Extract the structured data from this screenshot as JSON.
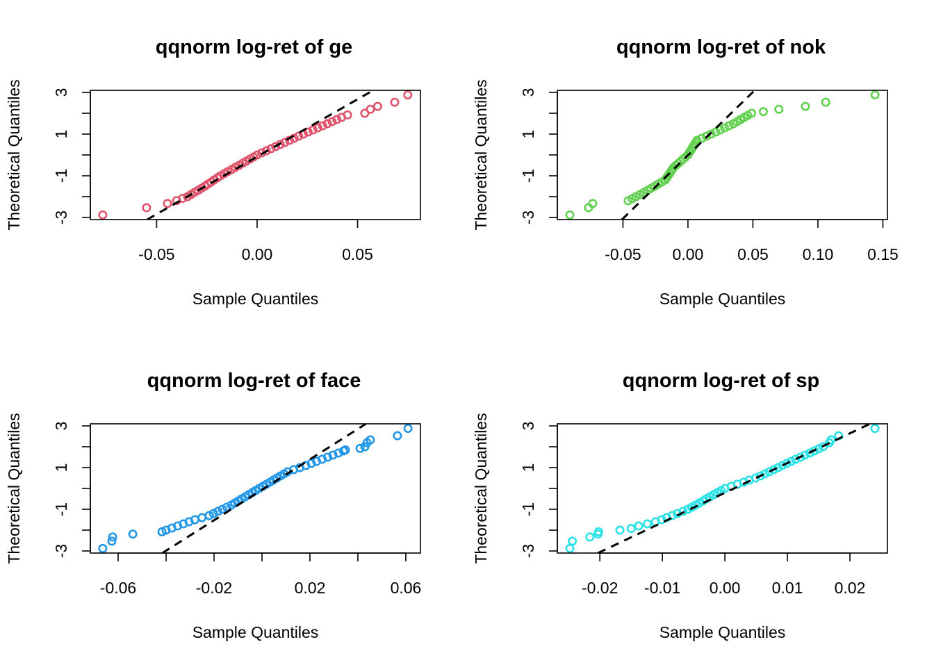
{
  "chart_data": [
    {
      "type": "scatter",
      "title": "qqnorm log-ret of ge",
      "xlabel": "Sample Quantiles",
      "ylabel": "Theoretical Quantiles",
      "color": "#DF536B",
      "xlim": [
        -0.083,
        0.0813
      ],
      "ylim": [
        -3.1,
        3.1
      ],
      "xticks": [
        -0.05,
        0.0,
        0.05
      ],
      "xtick_labels": [
        "-0.05",
        "0.00",
        "0.05"
      ],
      "yticks": [
        -3,
        -2,
        -1,
        0,
        1,
        2,
        3
      ],
      "ytick_labels": [
        "-3",
        "",
        "-1",
        "",
        "1",
        "",
        "3"
      ],
      "qqline": {
        "intercept": -0.085,
        "slope": 55.1
      },
      "points": [
        [
          -0.0768,
          -2.88
        ],
        [
          -0.055,
          -2.53
        ],
        [
          -0.0446,
          -2.33
        ],
        [
          -0.04,
          -2.19
        ],
        [
          -0.037,
          -2.08
        ],
        [
          -0.0346,
          -2.0
        ],
        [
          -0.0329,
          -1.9
        ],
        [
          -0.0312,
          -1.8
        ],
        [
          -0.0294,
          -1.7
        ],
        [
          -0.0277,
          -1.6
        ],
        [
          -0.026,
          -1.5
        ],
        [
          -0.0245,
          -1.4
        ],
        [
          -0.0229,
          -1.3
        ],
        [
          -0.0214,
          -1.2
        ],
        [
          -0.0198,
          -1.1
        ],
        [
          -0.0183,
          -1.0
        ],
        [
          -0.0164,
          -0.9
        ],
        [
          -0.0146,
          -0.8
        ],
        [
          -0.0127,
          -0.7
        ],
        [
          -0.0109,
          -0.6
        ],
        [
          -0.009,
          -0.5
        ],
        [
          -0.0072,
          -0.4
        ],
        [
          -0.0054,
          -0.3
        ],
        [
          -0.0036,
          -0.2
        ],
        [
          -0.0018,
          -0.1
        ],
        [
          0,
          0
        ],
        [
          0.0023,
          0.1
        ],
        [
          0.0046,
          0.2
        ],
        [
          0.0069,
          0.3
        ],
        [
          0.0092,
          0.4
        ],
        [
          0.0115,
          0.5
        ],
        [
          0.0138,
          0.6
        ],
        [
          0.0161,
          0.7
        ],
        [
          0.0184,
          0.8
        ],
        [
          0.0207,
          0.9
        ],
        [
          0.023,
          1.0
        ],
        [
          0.0254,
          1.1
        ],
        [
          0.0278,
          1.2
        ],
        [
          0.0302,
          1.3
        ],
        [
          0.0326,
          1.4
        ],
        [
          0.035,
          1.5
        ],
        [
          0.0373,
          1.6
        ],
        [
          0.0397,
          1.7
        ],
        [
          0.042,
          1.8
        ],
        [
          0.045,
          1.92
        ],
        [
          0.0536,
          2.0
        ],
        [
          0.0564,
          2.19
        ],
        [
          0.06,
          2.33
        ],
        [
          0.0685,
          2.53
        ],
        [
          0.075,
          2.88
        ]
      ]
    },
    {
      "type": "scatter",
      "title": "qqnorm log-ret of nok",
      "xlabel": "Sample Quantiles",
      "ylabel": "Theoretical Quantiles",
      "color": "#61D04F",
      "xlim": [
        -0.1005,
        0.1535
      ],
      "ylim": [
        -3.1,
        3.1
      ],
      "xticks": [
        -0.05,
        0.0,
        0.05,
        0.1,
        0.15
      ],
      "xtick_labels": [
        "-0.05",
        "0.00",
        "0.05",
        "0.10",
        "0.15"
      ],
      "yticks": [
        -3,
        -2,
        -1,
        0,
        1,
        2,
        3
      ],
      "ytick_labels": [
        "-3",
        "",
        "-1",
        "",
        "1",
        "",
        "3"
      ],
      "qqline": {
        "intercept": -0.017,
        "slope": 60.7
      },
      "points": [
        [
          -0.0909,
          -2.88
        ],
        [
          -0.0765,
          -2.53
        ],
        [
          -0.0733,
          -2.33
        ],
        [
          -0.046,
          -2.2
        ],
        [
          -0.043,
          -2.1
        ],
        [
          -0.04,
          -2.0
        ],
        [
          -0.037,
          -1.9
        ],
        [
          -0.034,
          -1.8
        ],
        [
          -0.031,
          -1.7
        ],
        [
          -0.0283,
          -1.6
        ],
        [
          -0.0256,
          -1.5
        ],
        [
          -0.0229,
          -1.4
        ],
        [
          -0.0202,
          -1.3
        ],
        [
          -0.0175,
          -1.2
        ],
        [
          -0.0164,
          -1.1
        ],
        [
          -0.0153,
          -1.0
        ],
        [
          -0.0142,
          -0.9
        ],
        [
          -0.0132,
          -0.8
        ],
        [
          -0.0121,
          -0.7
        ],
        [
          -0.011,
          -0.6
        ],
        [
          -0.0092,
          -0.5
        ],
        [
          -0.0073,
          -0.4
        ],
        [
          -0.0055,
          -0.3
        ],
        [
          -0.0037,
          -0.2
        ],
        [
          -0.0018,
          -0.1
        ],
        [
          0,
          0
        ],
        [
          0.001,
          0.1
        ],
        [
          0.002,
          0.2
        ],
        [
          0.003,
          0.3
        ],
        [
          0.004,
          0.4
        ],
        [
          0.005,
          0.5
        ],
        [
          0.006,
          0.6
        ],
        [
          0.007,
          0.7
        ],
        [
          0.0106,
          0.8
        ],
        [
          0.0142,
          0.9
        ],
        [
          0.0178,
          1.0
        ],
        [
          0.0214,
          1.1
        ],
        [
          0.0248,
          1.2
        ],
        [
          0.0282,
          1.3
        ],
        [
          0.0316,
          1.4
        ],
        [
          0.035,
          1.5
        ],
        [
          0.0378,
          1.6
        ],
        [
          0.0405,
          1.7
        ],
        [
          0.0433,
          1.8
        ],
        [
          0.046,
          1.9
        ],
        [
          0.049,
          2.0
        ],
        [
          0.058,
          2.08
        ],
        [
          0.07,
          2.19
        ],
        [
          0.0904,
          2.33
        ],
        [
          0.106,
          2.53
        ],
        [
          0.144,
          2.88
        ]
      ]
    },
    {
      "type": "scatter",
      "title": "qqnorm log-ret of face",
      "xlabel": "Sample Quantiles",
      "ylabel": "Theoretical Quantiles",
      "color": "#2297E6",
      "xlim": [
        -0.0716,
        0.0661
      ],
      "ylim": [
        -3.1,
        3.1
      ],
      "xticks": [
        -0.06,
        -0.04,
        -0.02,
        0.0,
        0.02,
        0.04,
        0.06
      ],
      "xtick_labels": [
        "-0.06",
        "",
        "-0.02",
        "",
        "0.02",
        "",
        "0.06"
      ],
      "yticks": [
        -3,
        -2,
        -1,
        0,
        1,
        2,
        3
      ],
      "ytick_labels": [
        "-3",
        "",
        "-1",
        "",
        "1",
        "",
        "3"
      ],
      "qqline": {
        "intercept": -0.066,
        "slope": 73.0
      },
      "points": [
        [
          -0.0664,
          -2.88
        ],
        [
          -0.0626,
          -2.53
        ],
        [
          -0.0623,
          -2.33
        ],
        [
          -0.0539,
          -2.19
        ],
        [
          -0.0417,
          -2.08
        ],
        [
          -0.04,
          -2.0
        ],
        [
          -0.0376,
          -1.9
        ],
        [
          -0.0352,
          -1.8
        ],
        [
          -0.0328,
          -1.7
        ],
        [
          -0.0304,
          -1.6
        ],
        [
          -0.028,
          -1.5
        ],
        [
          -0.025,
          -1.4
        ],
        [
          -0.022,
          -1.3
        ],
        [
          -0.0202,
          -1.2
        ],
        [
          -0.0184,
          -1.1
        ],
        [
          -0.0165,
          -1.0
        ],
        [
          -0.0147,
          -0.9
        ],
        [
          -0.0128,
          -0.8
        ],
        [
          -0.0114,
          -0.7
        ],
        [
          -0.0099,
          -0.6
        ],
        [
          -0.0085,
          -0.5
        ],
        [
          -0.007,
          -0.4
        ],
        [
          -0.0056,
          -0.3
        ],
        [
          -0.0041,
          -0.2
        ],
        [
          -0.0027,
          -0.1
        ],
        [
          -0.0012,
          0
        ],
        [
          0.0003,
          0.1
        ],
        [
          0.0018,
          0.2
        ],
        [
          0.0033,
          0.3
        ],
        [
          0.0048,
          0.4
        ],
        [
          0.0062,
          0.5
        ],
        [
          0.0077,
          0.6
        ],
        [
          0.0092,
          0.7
        ],
        [
          0.0107,
          0.8
        ],
        [
          0.0132,
          0.9
        ],
        [
          0.0158,
          1.0
        ],
        [
          0.0183,
          1.1
        ],
        [
          0.0206,
          1.2
        ],
        [
          0.0228,
          1.3
        ],
        [
          0.0251,
          1.4
        ],
        [
          0.0274,
          1.5
        ],
        [
          0.0296,
          1.6
        ],
        [
          0.0319,
          1.7
        ],
        [
          0.034,
          1.8
        ],
        [
          0.0348,
          1.85
        ],
        [
          0.0409,
          1.92
        ],
        [
          0.0429,
          2.0
        ],
        [
          0.0438,
          2.19
        ],
        [
          0.0452,
          2.33
        ],
        [
          0.0565,
          2.53
        ],
        [
          0.0609,
          2.88
        ]
      ]
    },
    {
      "type": "scatter",
      "title": "qqnorm log-ret of sp",
      "xlabel": "Sample Quantiles",
      "ylabel": "Theoretical Quantiles",
      "color": "#28E2E5",
      "xlim": [
        -0.0268,
        0.026
      ],
      "ylim": [
        -3.1,
        3.1
      ],
      "xticks": [
        -0.02,
        -0.01,
        0.0,
        0.01,
        0.02
      ],
      "xtick_labels": [
        "-0.02",
        "-0.01",
        "0.00",
        "0.01",
        "0.02"
      ],
      "yticks": [
        -3,
        -2,
        -1,
        0,
        1,
        2,
        3
      ],
      "ytick_labels": [
        "-3",
        "",
        "-1",
        "",
        "1",
        "",
        "3"
      ],
      "qqline": {
        "intercept": -0.206,
        "slope": 142.5
      },
      "points": [
        [
          -0.0248,
          -2.88
        ],
        [
          -0.0244,
          -2.53
        ],
        [
          -0.0216,
          -2.33
        ],
        [
          -0.0203,
          -2.19
        ],
        [
          -0.0202,
          -2.08
        ],
        [
          -0.0168,
          -2.0
        ],
        [
          -0.015,
          -1.92
        ],
        [
          -0.0138,
          -1.8
        ],
        [
          -0.0124,
          -1.7
        ],
        [
          -0.0111,
          -1.6
        ],
        [
          -0.0101,
          -1.5
        ],
        [
          -0.0093,
          -1.4
        ],
        [
          -0.0084,
          -1.3
        ],
        [
          -0.0076,
          -1.2
        ],
        [
          -0.0067,
          -1.1
        ],
        [
          -0.0059,
          -1.0
        ],
        [
          -0.0053,
          -0.9
        ],
        [
          -0.0047,
          -0.8
        ],
        [
          -0.0041,
          -0.7
        ],
        [
          -0.0035,
          -0.6
        ],
        [
          -0.003,
          -0.5
        ],
        [
          -0.0024,
          -0.4
        ],
        [
          -0.0018,
          -0.3
        ],
        [
          -0.0012,
          -0.2
        ],
        [
          -0.0006,
          -0.1
        ],
        [
          0,
          0
        ],
        [
          0.001,
          0.1
        ],
        [
          0.002,
          0.2
        ],
        [
          0.003,
          0.3
        ],
        [
          0.0039,
          0.4
        ],
        [
          0.0049,
          0.5
        ],
        [
          0.0057,
          0.6
        ],
        [
          0.0064,
          0.7
        ],
        [
          0.0071,
          0.8
        ],
        [
          0.0078,
          0.9
        ],
        [
          0.0085,
          1.0
        ],
        [
          0.0092,
          1.1
        ],
        [
          0.0099,
          1.2
        ],
        [
          0.0106,
          1.3
        ],
        [
          0.0113,
          1.4
        ],
        [
          0.0121,
          1.5
        ],
        [
          0.0128,
          1.6
        ],
        [
          0.0136,
          1.7
        ],
        [
          0.0143,
          1.8
        ],
        [
          0.015,
          1.9
        ],
        [
          0.0157,
          2.0
        ],
        [
          0.0167,
          2.19
        ],
        [
          0.017,
          2.33
        ],
        [
          0.0182,
          2.53
        ],
        [
          0.024,
          2.88
        ]
      ]
    }
  ]
}
